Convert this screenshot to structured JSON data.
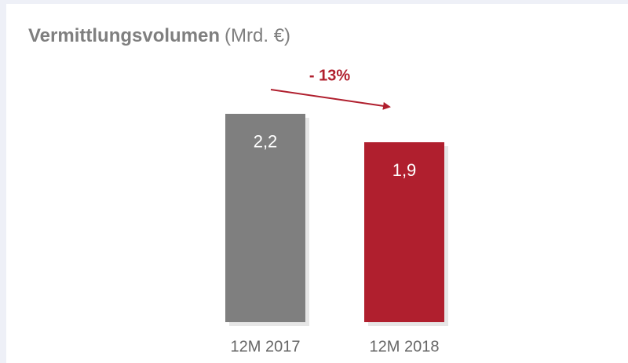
{
  "chart_data": {
    "type": "bar",
    "title": "Vermittlungsvolumen",
    "subtitle": "(Mrd. €)",
    "annotation": "- 13%",
    "categories": [
      "12M 2017",
      "12M 2018"
    ],
    "values": [
      2.2,
      1.9
    ],
    "value_labels": [
      "2,2",
      "1,9"
    ],
    "colors": [
      "#7f7f7f",
      "#b01f2e"
    ]
  }
}
